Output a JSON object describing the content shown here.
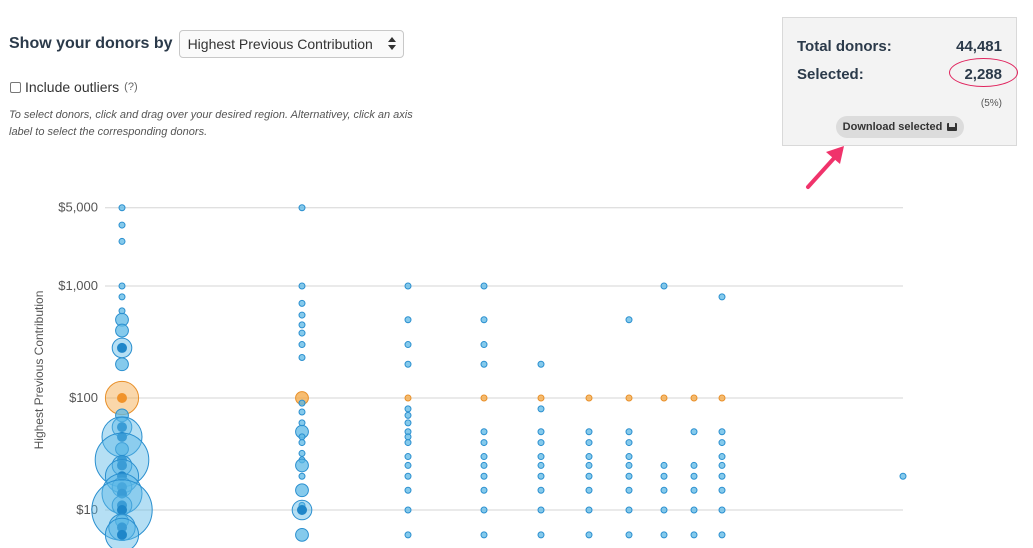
{
  "controls": {
    "show_label": "Show your donors by",
    "select_value": "Highest Previous Contribution",
    "include_outliers_label": "Include outliers",
    "include_outliers_checked": false,
    "help_text": "(?)",
    "instructions": "To select donors, click and drag over your desired region. Alternativey, click an axis label to select the corresponding donors."
  },
  "summary": {
    "total_label": "Total donors:",
    "total_value": "44,481",
    "selected_label": "Selected:",
    "selected_value": "2,288",
    "selected_percent": "(5%)",
    "download_label": "Download selected",
    "download_icon": "inbox-icon",
    "highlight_color": "#e0245e"
  },
  "chart_data": {
    "type": "scatter",
    "title": "",
    "ylabel": "Highest Previous Contribution",
    "y_scale": "log",
    "y_ticks": [
      {
        "value": 5000,
        "label": "$5,000"
      },
      {
        "value": 1000,
        "label": "$1,000"
      },
      {
        "value": 100,
        "label": "$100"
      },
      {
        "value": 10,
        "label": "$10"
      }
    ],
    "grid": true,
    "colors": {
      "unselected": "#5cb8e6",
      "selected": "#f4a742"
    },
    "selected_value": 100,
    "columns": [
      {
        "col": 0,
        "points": [
          [
            5000,
            1
          ],
          [
            3500,
            1
          ],
          [
            2500,
            1
          ],
          [
            1000,
            1
          ],
          [
            800,
            1
          ],
          [
            600,
            1
          ],
          [
            500,
            2
          ],
          [
            400,
            2
          ],
          [
            280,
            3
          ],
          [
            200,
            2
          ],
          [
            100,
            5
          ],
          [
            70,
            2
          ],
          [
            55,
            3
          ],
          [
            45,
            6
          ],
          [
            35,
            2
          ],
          [
            28,
            8
          ],
          [
            25,
            3
          ],
          [
            20,
            5
          ],
          [
            16,
            3
          ],
          [
            14,
            6
          ],
          [
            11,
            3
          ],
          [
            10,
            9
          ],
          [
            8,
            2
          ],
          [
            7,
            4
          ],
          [
            6,
            5
          ]
        ]
      },
      {
        "col": 1,
        "points": [
          [
            5000,
            1
          ],
          [
            1000,
            1
          ],
          [
            700,
            1
          ],
          [
            550,
            1
          ],
          [
            450,
            1
          ],
          [
            380,
            1
          ],
          [
            300,
            1
          ],
          [
            230,
            1
          ],
          [
            100,
            2
          ],
          [
            90,
            1
          ],
          [
            75,
            1
          ],
          [
            60,
            1
          ],
          [
            50,
            2
          ],
          [
            45,
            1
          ],
          [
            40,
            1
          ],
          [
            32,
            1
          ],
          [
            28,
            1
          ],
          [
            25,
            2
          ],
          [
            20,
            1
          ],
          [
            15,
            2
          ],
          [
            11,
            1
          ],
          [
            10,
            3
          ],
          [
            6,
            2
          ]
        ]
      },
      {
        "col": 2,
        "points": [
          [
            1000,
            1
          ],
          [
            500,
            1
          ],
          [
            300,
            1
          ],
          [
            200,
            1
          ],
          [
            100,
            1
          ],
          [
            80,
            1
          ],
          [
            70,
            1
          ],
          [
            60,
            1
          ],
          [
            50,
            1
          ],
          [
            45,
            1
          ],
          [
            40,
            1
          ],
          [
            30,
            1
          ],
          [
            25,
            1
          ],
          [
            20,
            1
          ],
          [
            15,
            1
          ],
          [
            10,
            1
          ],
          [
            6,
            1
          ]
        ]
      },
      {
        "col": 3,
        "points": [
          [
            1000,
            1
          ],
          [
            500,
            1
          ],
          [
            300,
            1
          ],
          [
            200,
            1
          ],
          [
            100,
            1
          ],
          [
            50,
            1
          ],
          [
            40,
            1
          ],
          [
            30,
            1
          ],
          [
            25,
            1
          ],
          [
            20,
            1
          ],
          [
            15,
            1
          ],
          [
            10,
            1
          ],
          [
            6,
            1
          ]
        ]
      },
      {
        "col": 4,
        "points": [
          [
            200,
            1
          ],
          [
            100,
            1
          ],
          [
            80,
            1
          ],
          [
            50,
            1
          ],
          [
            40,
            1
          ],
          [
            30,
            1
          ],
          [
            25,
            1
          ],
          [
            20,
            1
          ],
          [
            15,
            1
          ],
          [
            10,
            1
          ],
          [
            6,
            1
          ]
        ]
      },
      {
        "col": 5,
        "points": [
          [
            100,
            1
          ],
          [
            50,
            1
          ],
          [
            40,
            1
          ],
          [
            30,
            1
          ],
          [
            25,
            1
          ],
          [
            20,
            1
          ],
          [
            15,
            1
          ],
          [
            10,
            1
          ],
          [
            6,
            1
          ]
        ]
      },
      {
        "col": 6,
        "points": [
          [
            500,
            1
          ],
          [
            100,
            1
          ],
          [
            50,
            1
          ],
          [
            40,
            1
          ],
          [
            30,
            1
          ],
          [
            25,
            1
          ],
          [
            20,
            1
          ],
          [
            15,
            1
          ],
          [
            10,
            1
          ],
          [
            6,
            1
          ]
        ]
      },
      {
        "col": 7,
        "points": [
          [
            1000,
            1
          ],
          [
            100,
            1
          ],
          [
            25,
            1
          ],
          [
            20,
            1
          ],
          [
            15,
            1
          ],
          [
            10,
            1
          ],
          [
            6,
            1
          ]
        ]
      },
      {
        "col": 8,
        "points": [
          [
            100,
            1
          ],
          [
            50,
            1
          ],
          [
            25,
            1
          ],
          [
            20,
            1
          ],
          [
            15,
            1
          ],
          [
            10,
            1
          ],
          [
            6,
            1
          ]
        ]
      },
      {
        "col": 9,
        "points": [
          [
            800,
            1
          ],
          [
            100,
            1
          ],
          [
            50,
            1
          ],
          [
            40,
            1
          ],
          [
            30,
            1
          ],
          [
            25,
            1
          ],
          [
            20,
            1
          ],
          [
            15,
            1
          ],
          [
            10,
            1
          ],
          [
            6,
            1
          ]
        ]
      },
      {
        "col": 10,
        "points": [
          [
            20,
            1
          ]
        ]
      }
    ]
  }
}
